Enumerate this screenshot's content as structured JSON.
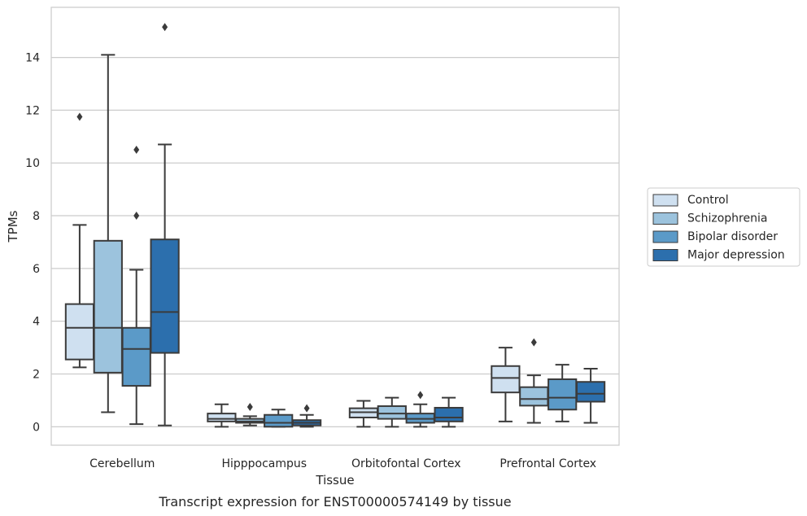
{
  "chart_data": {
    "type": "box",
    "title": "",
    "caption": "Transcript expression for ENST00000574149 by tissue",
    "xlabel": "Tissue",
    "ylabel": "TPMs",
    "ylim": [
      -0.7,
      15.9
    ],
    "yticks": [
      0,
      2,
      4,
      6,
      8,
      10,
      12,
      14
    ],
    "grid": "horizontal",
    "legend_position": "right",
    "categories": [
      "Cerebellum",
      "Hipppocampus",
      "Orbitofontal Cortex",
      "Prefrontal Cortex"
    ],
    "series": [
      {
        "name": "Control",
        "color": "#cfe0f0",
        "boxes": [
          {
            "whisker_low": 2.25,
            "q1": 2.55,
            "median": 3.75,
            "q3": 4.65,
            "whisker_high": 7.65,
            "outliers": [
              11.75
            ]
          },
          {
            "whisker_low": 0.0,
            "q1": 0.2,
            "median": 0.3,
            "q3": 0.5,
            "whisker_high": 0.85,
            "outliers": []
          },
          {
            "whisker_low": 0.0,
            "q1": 0.35,
            "median": 0.55,
            "q3": 0.7,
            "whisker_high": 0.98,
            "outliers": []
          },
          {
            "whisker_low": 0.2,
            "q1": 1.3,
            "median": 1.85,
            "q3": 2.3,
            "whisker_high": 3.0,
            "outliers": []
          }
        ]
      },
      {
        "name": "Schizophrenia",
        "color": "#9cc3dd",
        "boxes": [
          {
            "whisker_low": 0.55,
            "q1": 2.05,
            "median": 3.75,
            "q3": 7.05,
            "whisker_high": 14.1,
            "outliers": []
          },
          {
            "whisker_low": 0.05,
            "q1": 0.15,
            "median": 0.2,
            "q3": 0.3,
            "whisker_high": 0.4,
            "outliers": [
              0.75
            ]
          },
          {
            "whisker_low": 0.0,
            "q1": 0.3,
            "median": 0.5,
            "q3": 0.78,
            "whisker_high": 1.1,
            "outliers": []
          },
          {
            "whisker_low": 0.15,
            "q1": 0.8,
            "median": 1.05,
            "q3": 1.5,
            "whisker_high": 1.95,
            "outliers": [
              3.2
            ]
          }
        ]
      },
      {
        "name": "Bipolar disorder",
        "color": "#5b9ac8",
        "boxes": [
          {
            "whisker_low": 0.1,
            "q1": 1.55,
            "median": 2.95,
            "q3": 3.75,
            "whisker_high": 5.95,
            "outliers": [
              8.0,
              10.5
            ]
          },
          {
            "whisker_low": 0.0,
            "q1": 0.0,
            "median": 0.15,
            "q3": 0.45,
            "whisker_high": 0.65,
            "outliers": []
          },
          {
            "whisker_low": 0.0,
            "q1": 0.15,
            "median": 0.3,
            "q3": 0.5,
            "whisker_high": 0.85,
            "outliers": [
              1.2
            ]
          },
          {
            "whisker_low": 0.2,
            "q1": 0.65,
            "median": 1.1,
            "q3": 1.8,
            "whisker_high": 2.35,
            "outliers": []
          }
        ]
      },
      {
        "name": "Major depression",
        "color": "#2c6fad",
        "boxes": [
          {
            "whisker_low": 0.05,
            "q1": 2.8,
            "median": 4.35,
            "q3": 7.1,
            "whisker_high": 10.7,
            "outliers": [
              15.15
            ]
          },
          {
            "whisker_low": 0.0,
            "q1": 0.05,
            "median": 0.15,
            "q3": 0.25,
            "whisker_high": 0.45,
            "outliers": [
              0.7
            ]
          },
          {
            "whisker_low": 0.0,
            "q1": 0.2,
            "median": 0.35,
            "q3": 0.72,
            "whisker_high": 1.1,
            "outliers": []
          },
          {
            "whisker_low": 0.15,
            "q1": 0.95,
            "median": 1.25,
            "q3": 1.7,
            "whisker_high": 2.2,
            "outliers": []
          }
        ]
      }
    ]
  }
}
